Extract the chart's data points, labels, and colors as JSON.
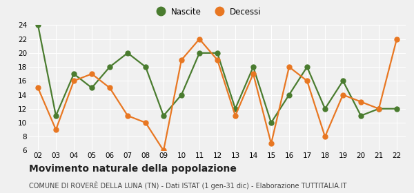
{
  "years": [
    2,
    3,
    4,
    5,
    6,
    7,
    8,
    9,
    10,
    11,
    12,
    13,
    14,
    15,
    16,
    17,
    18,
    19,
    20,
    21,
    22
  ],
  "nascite": [
    24,
    11,
    17,
    15,
    18,
    20,
    18,
    11,
    14,
    20,
    20,
    12,
    18,
    10,
    14,
    18,
    12,
    16,
    11,
    12,
    12
  ],
  "decessi": [
    15,
    9,
    16,
    17,
    15,
    11,
    10,
    6,
    19,
    22,
    19,
    11,
    17,
    7,
    18,
    16,
    8,
    14,
    13,
    12,
    22
  ],
  "nascite_color": "#4a7c2f",
  "decessi_color": "#e87722",
  "background_color": "#f0f0f0",
  "grid_color": "#ffffff",
  "ylim": [
    6,
    24
  ],
  "yticks": [
    6,
    8,
    10,
    12,
    14,
    16,
    18,
    20,
    22,
    24
  ],
  "title": "Movimento naturale della popolazione",
  "subtitle": "COMUNE DI ROVERÈ DELLA LUNA (TN) - Dati ISTAT (1 gen-31 dic) - Elaborazione TUTTITALIA.IT",
  "legend_nascite": "Nascite",
  "legend_decessi": "Decessi",
  "title_fontsize": 10,
  "subtitle_fontsize": 7,
  "marker_size": 5,
  "line_width": 1.6
}
